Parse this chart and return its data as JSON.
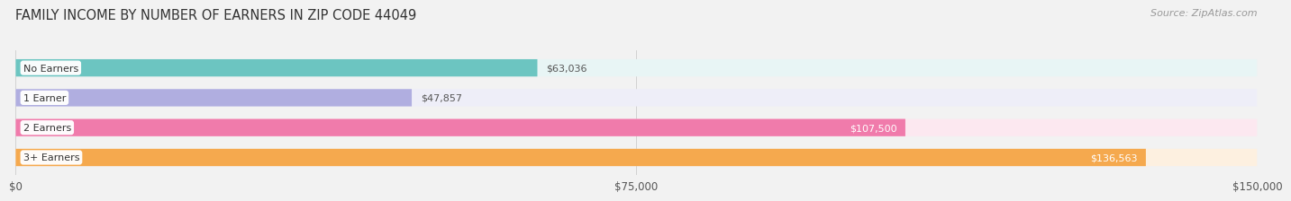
{
  "title": "FAMILY INCOME BY NUMBER OF EARNERS IN ZIP CODE 44049",
  "source": "Source: ZipAtlas.com",
  "categories": [
    "No Earners",
    "1 Earner",
    "2 Earners",
    "3+ Earners"
  ],
  "values": [
    63036,
    47857,
    107500,
    136563
  ],
  "bar_colors": [
    "#6cc5c1",
    "#b0aee0",
    "#f07bab",
    "#f5a94e"
  ],
  "bg_colors": [
    "#e8f5f5",
    "#eeeef8",
    "#fce8f0",
    "#fdf0e0"
  ],
  "value_labels": [
    "$63,036",
    "$47,857",
    "$107,500",
    "$136,563"
  ],
  "xlim": [
    0,
    150000
  ],
  "xticks": [
    0,
    75000,
    150000
  ],
  "xtick_labels": [
    "$0",
    "$75,000",
    "$150,000"
  ],
  "background_color": "#f2f2f2",
  "title_fontsize": 10.5,
  "source_fontsize": 8,
  "bar_height": 0.58
}
